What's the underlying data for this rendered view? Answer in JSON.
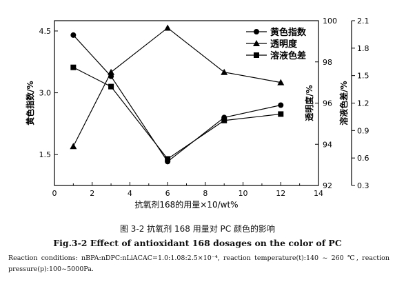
{
  "chart_data": {
    "type": "line",
    "x": [
      1,
      3,
      6,
      9,
      12
    ],
    "xlabel": "抗氧剂168的用量×10/wt%",
    "xlim": [
      0,
      14
    ],
    "xticks": [
      "0",
      "2",
      "4",
      "6",
      "8",
      "10",
      "12",
      "14"
    ],
    "grid": false,
    "legend_position": "top-right",
    "axes": {
      "left": {
        "label": "黄色指数/%",
        "ylim": [
          0.75,
          4.75
        ],
        "ticks": [
          "1.5",
          "3.0",
          "4.5"
        ]
      },
      "right1": {
        "label": "透明度/%",
        "ylim": [
          92,
          100
        ],
        "ticks": [
          "92",
          "94",
          "96",
          "98",
          "100"
        ]
      },
      "right2": {
        "label": "溶液色差/%",
        "ylim": [
          0.3,
          2.1
        ],
        "ticks": [
          "0.3",
          "0.6",
          "0.9",
          "1.2",
          "1.5",
          "1.8",
          "2.1"
        ]
      }
    },
    "series": [
      {
        "name": "黄色指数",
        "marker": "circle",
        "axis": "left",
        "values": [
          4.4,
          3.4,
          1.33,
          2.4,
          2.7
        ]
      },
      {
        "name": "透明度",
        "marker": "triangle",
        "axis": "right1",
        "values": [
          93.9,
          97.5,
          99.65,
          97.5,
          97.0
        ]
      },
      {
        "name": "溶液色差",
        "marker": "square",
        "axis": "right2",
        "values": [
          1.59,
          1.38,
          0.59,
          1.01,
          1.08
        ]
      }
    ]
  },
  "caption_cn": "图 3-2  抗氧剂 168 用量对 PC 颜色的影响",
  "caption_en": "Fig.3-2 Effect of antioxidant 168 dosages on the color of PC",
  "note": "Reaction conditions: nBPA:nDPC:nLiACAC=1.0:1.08:2.5×10⁻⁴, reaction temperature(t):140 ~ 260 ℃, reaction pressure(p):100~5000Pa."
}
